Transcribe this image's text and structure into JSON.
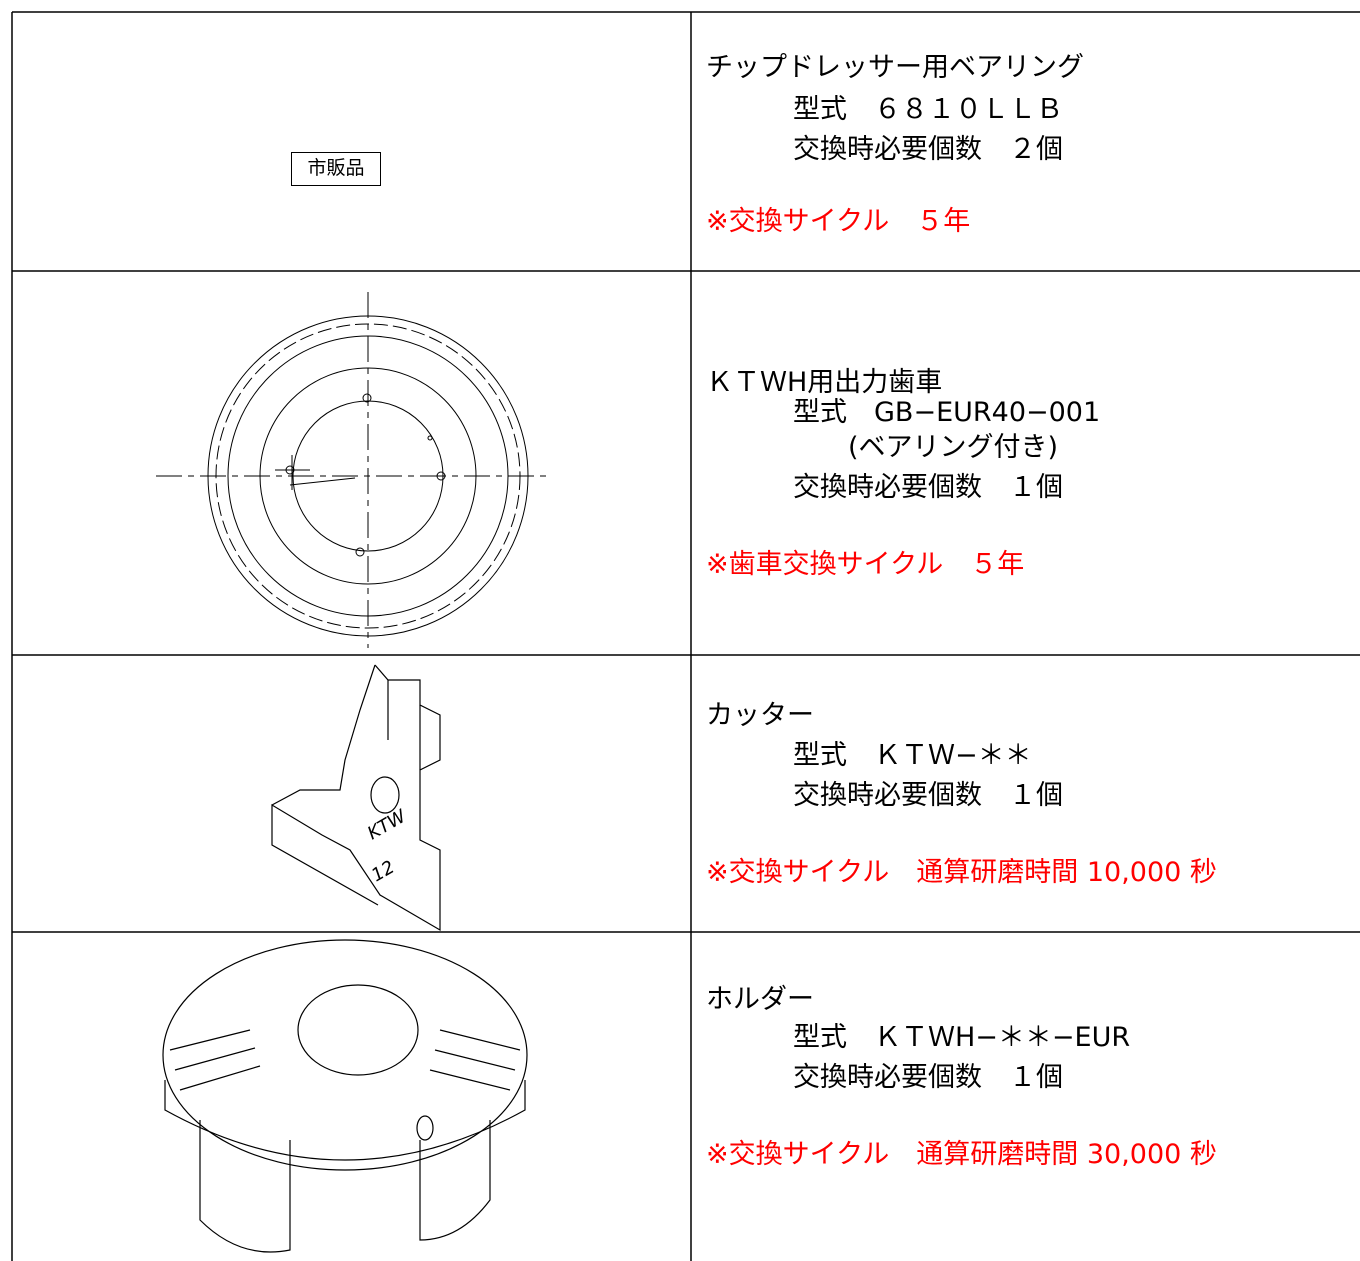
{
  "rows": [
    {
      "badge": "市販品",
      "name": "チップドレッサー用ベアリング",
      "model": "型式　６８１０ＬＬＢ",
      "quantity": "交換時必要個数　２個",
      "cycle": "※交換サイクル　５年"
    },
    {
      "name": "ＫＴＷH用出力歯車",
      "model": "型式　GB−EUR40−001",
      "note": "(ベアリング付き)",
      "quantity": "交換時必要個数　１個",
      "cycle": "※歯車交換サイクル　５年"
    },
    {
      "name": "カッター",
      "model": "型式　ＫＴＷ−＊＊",
      "quantity": "交換時必要個数　１個",
      "cycle": "※交換サイクル　通算研磨時間 10,000 秒"
    },
    {
      "name": "ホルダー",
      "model": "型式　ＫＴＷH−＊＊−EUR",
      "quantity": "交換時必要個数　１個",
      "cycle": "※交換サイクル　通算研磨時間 30,000 秒"
    }
  ]
}
